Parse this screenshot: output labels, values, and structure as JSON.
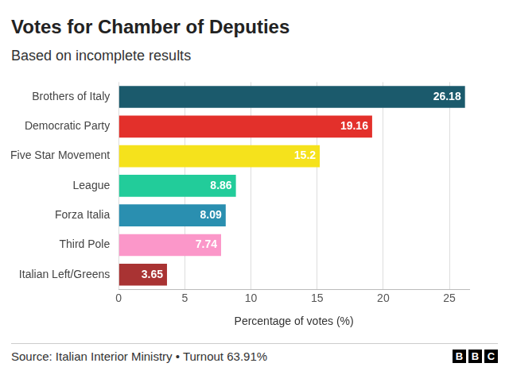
{
  "chart_data": {
    "type": "bar",
    "title": "Votes for Chamber of Deputies",
    "subtitle": "Based on incomplete results",
    "x_label": "Percentage of votes (%)",
    "source": "Source: Italian Interior Ministry • Turnout 63.91%",
    "logo": "BBC",
    "orientation": "horizontal",
    "categories": [
      "Brothers of Italy",
      "Democratic Party",
      "Five Star Movement",
      "League",
      "Forza Italia",
      "Third Pole",
      "Italian Left/Greens"
    ],
    "values": [
      26.18,
      19.16,
      15.2,
      8.86,
      8.09,
      7.74,
      3.65
    ],
    "colors": [
      "#1b5a6c",
      "#e3302b",
      "#f5e21c",
      "#22cc9a",
      "#2a8fb0",
      "#fb97c9",
      "#a93333"
    ],
    "xlim": [
      0,
      26.5
    ],
    "xticks": [
      0,
      5,
      10,
      15,
      20,
      25
    ],
    "grid": true,
    "data_labels": true
  }
}
